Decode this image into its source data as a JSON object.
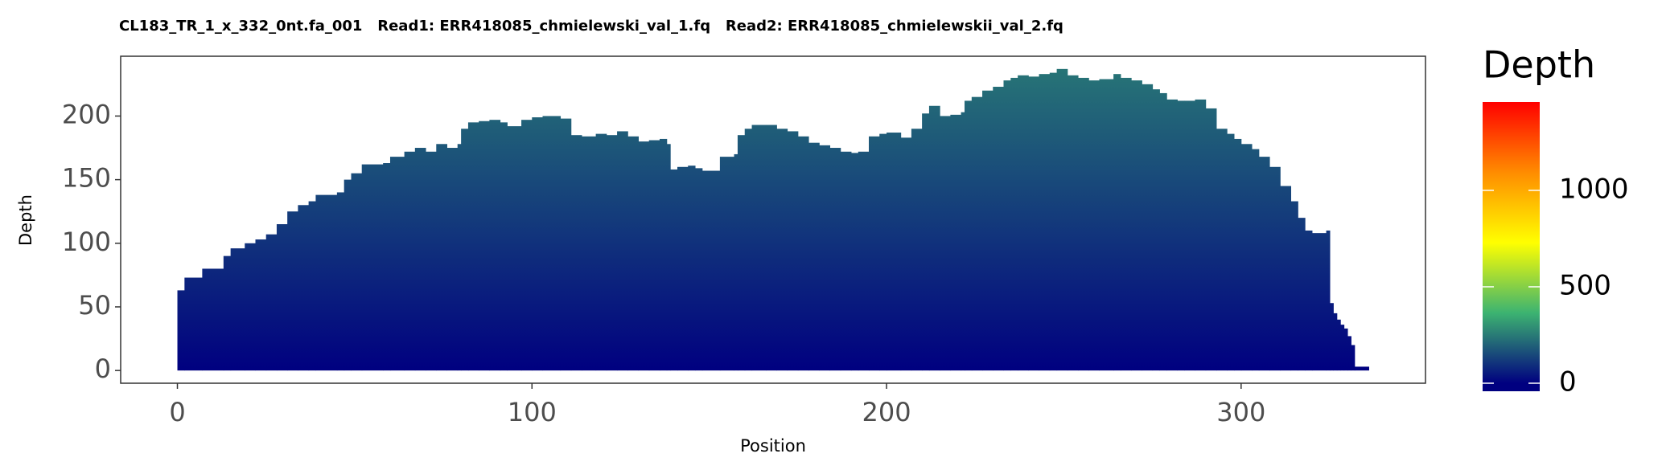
{
  "chart_data": {
    "type": "step",
    "title": "CL183_TR_1_x_332_0nt.fa_001   Read1: ERR418085_chmielewski_val_1.fq   Read2: ERR418085_chmielewskii_val_2.fq",
    "x_label": "Position",
    "y_label": "Depth",
    "x": [
      0,
      2,
      7,
      13,
      15,
      19,
      22,
      25,
      28,
      31,
      34,
      37,
      39,
      45,
      47,
      49,
      52,
      58,
      60,
      64,
      67,
      70,
      73,
      76,
      79,
      80,
      82,
      85,
      88,
      91,
      93,
      97,
      100,
      103,
      108,
      111,
      114,
      118,
      121,
      124,
      127,
      130,
      133,
      136,
      138,
      139,
      141,
      144,
      146,
      148,
      153,
      157,
      158,
      160,
      162,
      166,
      169,
      172,
      175,
      178,
      181,
      184,
      187,
      190,
      192,
      195,
      198,
      200,
      204,
      207,
      210,
      212,
      215,
      218,
      221,
      222,
      224,
      227,
      230,
      233,
      235,
      237,
      240,
      243,
      246,
      248,
      251,
      254,
      257,
      260,
      264,
      266,
      269,
      272,
      275,
      277,
      279,
      282,
      284,
      287,
      290,
      293,
      296,
      298,
      300,
      303,
      305,
      308,
      311,
      314,
      316,
      318,
      320,
      324,
      325,
      326,
      327,
      328,
      329,
      330,
      331,
      332,
      336
    ],
    "values": [
      63,
      73,
      80,
      90,
      96,
      100,
      103,
      107,
      115,
      125,
      130,
      133,
      138,
      140,
      150,
      155,
      162,
      163,
      168,
      172,
      175,
      172,
      178,
      175,
      178,
      190,
      195,
      196,
      197,
      195,
      192,
      197,
      199,
      200,
      198,
      185,
      184,
      186,
      185,
      188,
      184,
      180,
      181,
      182,
      178,
      158,
      160,
      161,
      159,
      157,
      168,
      170,
      185,
      190,
      193,
      193,
      190,
      188,
      184,
      179,
      177,
      175,
      172,
      171,
      172,
      184,
      186,
      187,
      183,
      190,
      202,
      208,
      200,
      201,
      203,
      212,
      215,
      220,
      223,
      228,
      230,
      232,
      231,
      233,
      234,
      237,
      232,
      230,
      228,
      229,
      233,
      230,
      228,
      225,
      221,
      218,
      213,
      212,
      212,
      213,
      206,
      190,
      186,
      182,
      178,
      174,
      168,
      160,
      145,
      133,
      120,
      110,
      108,
      110,
      53,
      45,
      40,
      36,
      33,
      27,
      20,
      3,
      null
    ],
    "xlim": [
      -16,
      352
    ],
    "ylim": [
      -10,
      247
    ],
    "xticks": [
      0,
      100,
      200,
      300
    ],
    "yticks": [
      0,
      50,
      100,
      150,
      200
    ],
    "grid": false,
    "fill_scale": {
      "title": "Depth",
      "range": [
        0,
        1458
      ],
      "ticks": [
        0,
        500,
        1000
      ],
      "colors": [
        "#000080",
        "#3cb371",
        "#ffff00",
        "#ff8c00",
        "#ff0000"
      ]
    }
  }
}
